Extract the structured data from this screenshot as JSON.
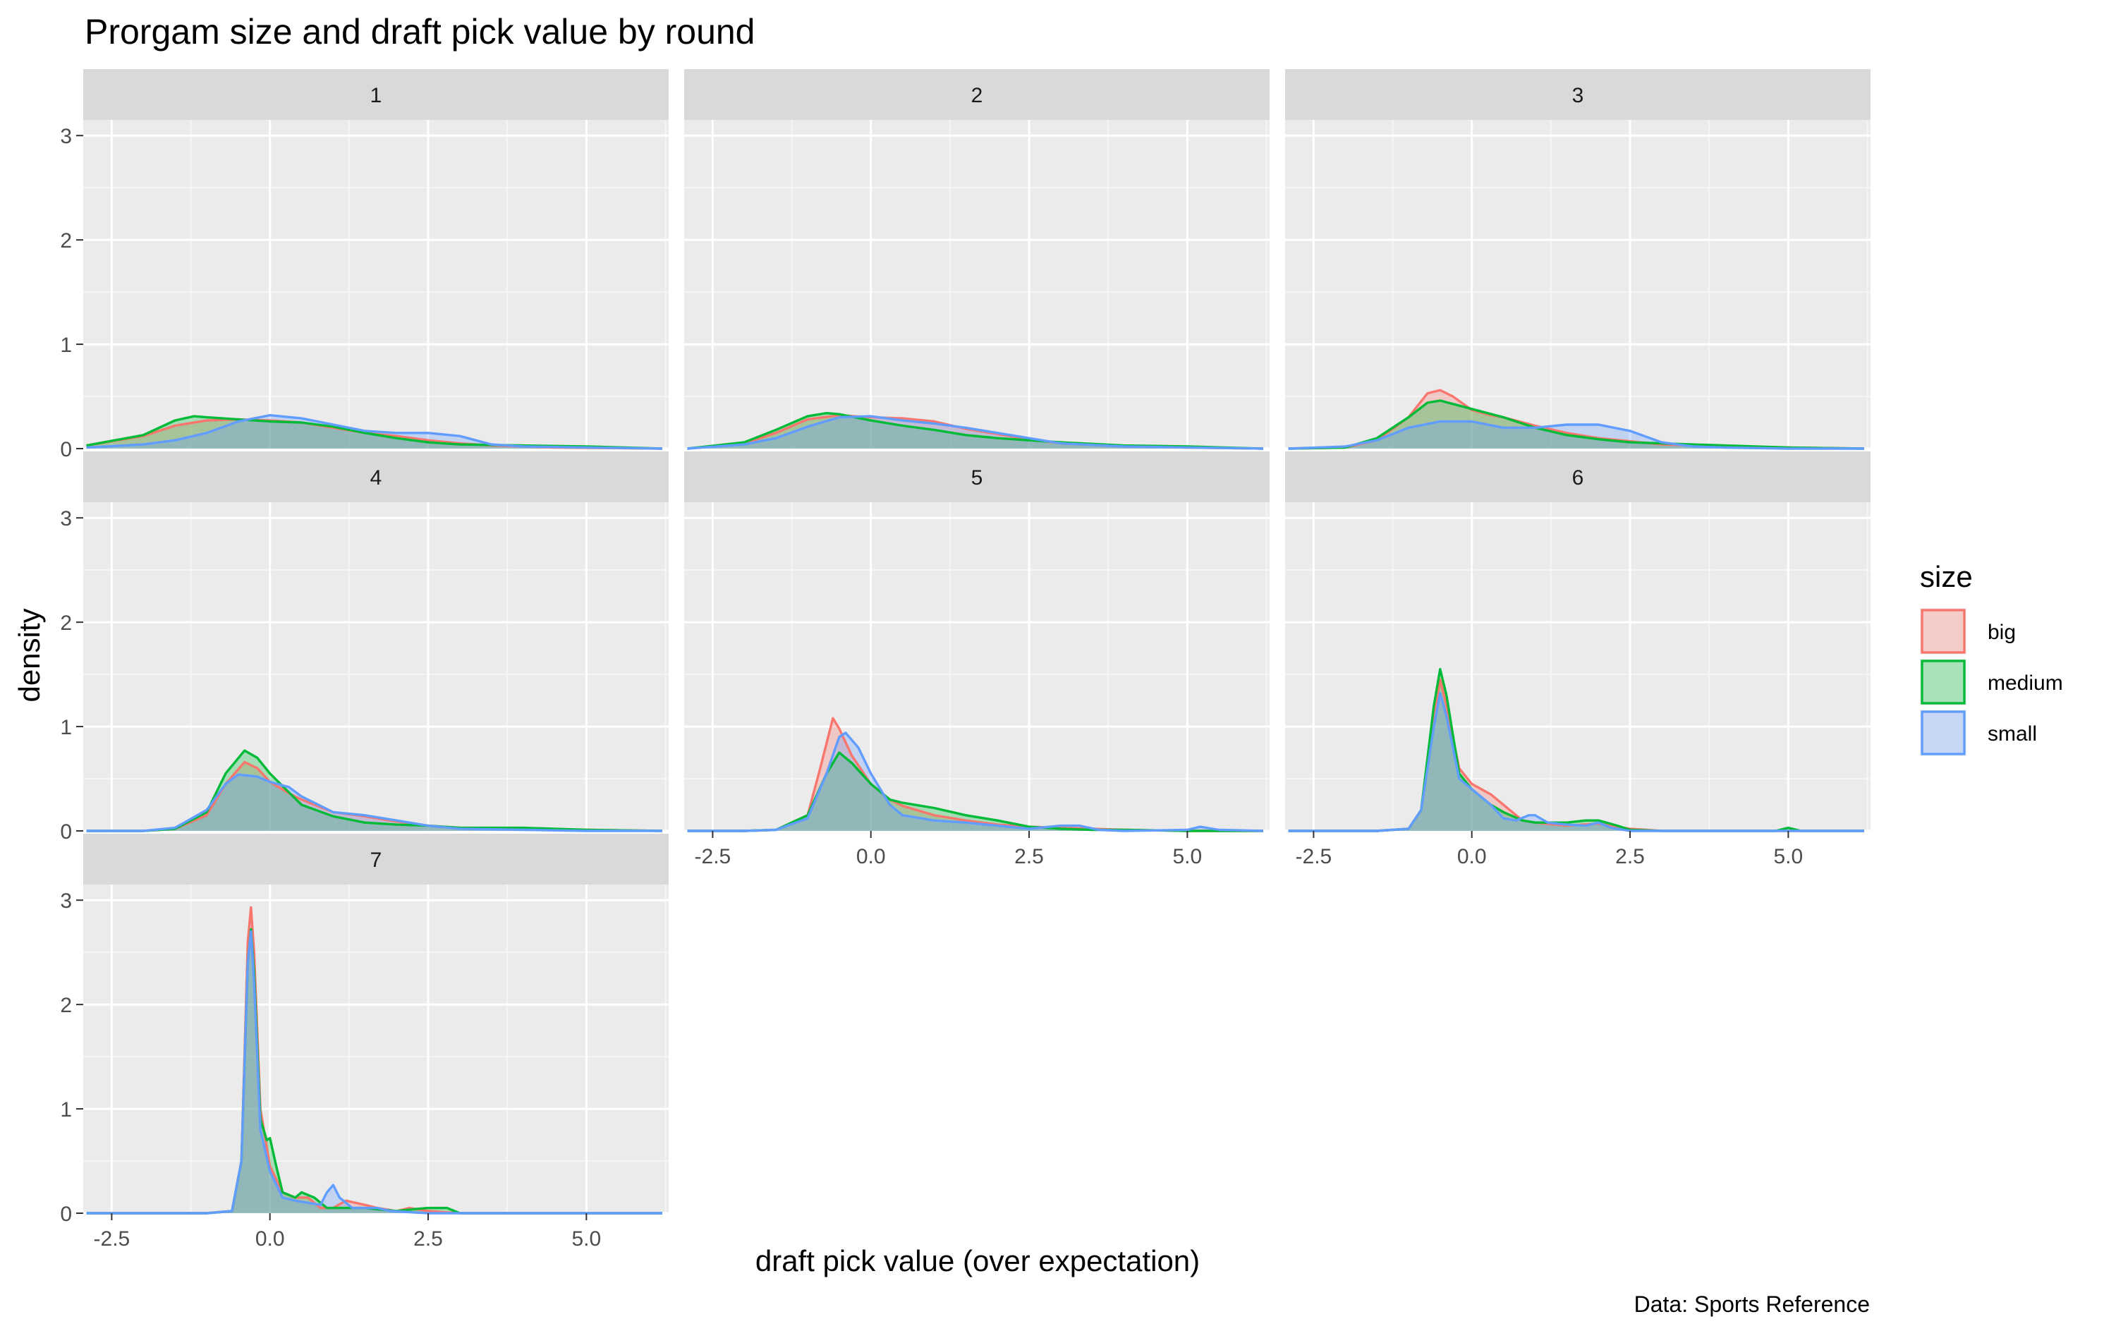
{
  "chart_data": {
    "type": "area",
    "title": "Prorgam size and draft pick value by round",
    "xlabel": "draft pick value (over expectation)",
    "ylabel": "density",
    "caption": "Data: Sports Reference",
    "xlim": [
      -2.95,
      6.3
    ],
    "ylim": [
      0,
      3
    ],
    "x_ticks": [
      -2.5,
      0.0,
      2.5,
      5.0
    ],
    "x_tick_labels": [
      "-2.5",
      "0.0",
      "2.5",
      "5.0"
    ],
    "y_ticks": [
      0,
      1,
      2,
      3
    ],
    "y_tick_labels": [
      "0",
      "1",
      "2",
      "3"
    ],
    "grid": true,
    "legend": {
      "title": "size",
      "position": "right",
      "entries": [
        {
          "label": "big",
          "color": "#F8766D"
        },
        {
          "label": "medium",
          "color": "#00BA38"
        },
        {
          "label": "small",
          "color": "#619CFF"
        }
      ]
    },
    "facets": [
      {
        "label": "1",
        "series": [
          {
            "name": "big",
            "x": [
              -2.9,
              -2.0,
              -1.5,
              -1.0,
              -0.5,
              0.0,
              0.5,
              1.0,
              1.5,
              2.0,
              2.5,
              3.0,
              3.5,
              4.5,
              6.2
            ],
            "y": [
              0.03,
              0.12,
              0.22,
              0.27,
              0.28,
              0.27,
              0.25,
              0.2,
              0.15,
              0.12,
              0.08,
              0.05,
              0.03,
              0.01,
              0.0
            ]
          },
          {
            "name": "medium",
            "x": [
              -2.9,
              -2.0,
              -1.5,
              -1.2,
              -1.0,
              -0.5,
              0.0,
              0.5,
              1.0,
              1.5,
              2.0,
              2.5,
              3.0,
              4.0,
              5.0,
              6.2
            ],
            "y": [
              0.03,
              0.13,
              0.27,
              0.31,
              0.3,
              0.28,
              0.26,
              0.25,
              0.21,
              0.15,
              0.1,
              0.06,
              0.04,
              0.03,
              0.02,
              0.0
            ]
          },
          {
            "name": "small",
            "x": [
              -2.9,
              -2.0,
              -1.5,
              -1.0,
              -0.5,
              0.0,
              0.5,
              1.0,
              1.5,
              2.0,
              2.5,
              3.0,
              3.5,
              4.0,
              5.0,
              6.2
            ],
            "y": [
              0.01,
              0.04,
              0.08,
              0.15,
              0.26,
              0.32,
              0.29,
              0.23,
              0.17,
              0.15,
              0.15,
              0.12,
              0.04,
              0.02,
              0.01,
              0.0
            ]
          }
        ]
      },
      {
        "label": "2",
        "series": [
          {
            "name": "big",
            "x": [
              -2.9,
              -2.0,
              -1.5,
              -1.0,
              -0.5,
              0.0,
              0.5,
              1.0,
              1.5,
              2.0,
              2.5,
              3.0,
              4.0,
              5.0,
              6.2
            ],
            "y": [
              0.0,
              0.05,
              0.15,
              0.28,
              0.32,
              0.3,
              0.29,
              0.26,
              0.19,
              0.14,
              0.09,
              0.05,
              0.02,
              0.01,
              0.0
            ]
          },
          {
            "name": "medium",
            "x": [
              -2.9,
              -2.0,
              -1.5,
              -1.0,
              -0.7,
              -0.5,
              0.0,
              0.5,
              1.0,
              1.5,
              2.0,
              2.5,
              3.0,
              4.0,
              5.0,
              6.2
            ],
            "y": [
              0.0,
              0.06,
              0.18,
              0.31,
              0.34,
              0.33,
              0.27,
              0.22,
              0.18,
              0.13,
              0.1,
              0.08,
              0.06,
              0.03,
              0.02,
              0.0
            ]
          },
          {
            "name": "small",
            "x": [
              -2.9,
              -2.0,
              -1.5,
              -1.0,
              -0.5,
              0.0,
              0.5,
              1.0,
              1.5,
              2.0,
              2.5,
              3.0,
              4.0,
              5.0,
              6.2
            ],
            "y": [
              0.0,
              0.04,
              0.1,
              0.21,
              0.3,
              0.31,
              0.27,
              0.24,
              0.2,
              0.15,
              0.1,
              0.05,
              0.02,
              0.01,
              0.0
            ]
          }
        ]
      },
      {
        "label": "3",
        "series": [
          {
            "name": "big",
            "x": [
              -2.9,
              -2.0,
              -1.5,
              -1.0,
              -0.7,
              -0.5,
              -0.3,
              0.0,
              0.3,
              0.5,
              1.0,
              1.5,
              2.0,
              2.5,
              3.0,
              4.0,
              5.0,
              6.2
            ],
            "y": [
              0.0,
              0.01,
              0.08,
              0.3,
              0.53,
              0.56,
              0.5,
              0.37,
              0.32,
              0.3,
              0.22,
              0.15,
              0.1,
              0.07,
              0.04,
              0.02,
              0.01,
              0.0
            ]
          },
          {
            "name": "medium",
            "x": [
              -2.9,
              -2.0,
              -1.5,
              -1.0,
              -0.7,
              -0.5,
              0.0,
              0.5,
              1.0,
              1.5,
              2.0,
              2.5,
              3.0,
              4.0,
              5.0,
              6.2
            ],
            "y": [
              0.0,
              0.01,
              0.1,
              0.3,
              0.44,
              0.46,
              0.38,
              0.3,
              0.2,
              0.13,
              0.09,
              0.06,
              0.05,
              0.03,
              0.01,
              0.0
            ]
          },
          {
            "name": "small",
            "x": [
              -2.9,
              -2.0,
              -1.5,
              -1.0,
              -0.5,
              0.0,
              0.5,
              1.0,
              1.5,
              2.0,
              2.5,
              3.0,
              3.5,
              4.0,
              5.0,
              6.2
            ],
            "y": [
              0.0,
              0.02,
              0.08,
              0.2,
              0.26,
              0.26,
              0.2,
              0.2,
              0.23,
              0.23,
              0.17,
              0.06,
              0.02,
              0.01,
              0.0,
              0.0
            ]
          }
        ]
      },
      {
        "label": "4",
        "series": [
          {
            "name": "big",
            "x": [
              -2.9,
              -2.0,
              -1.5,
              -1.0,
              -0.7,
              -0.4,
              -0.2,
              0.0,
              0.3,
              0.5,
              1.0,
              1.5,
              2.0,
              2.5,
              3.0,
              4.0,
              5.0,
              6.2
            ],
            "y": [
              0.0,
              0.0,
              0.02,
              0.15,
              0.45,
              0.66,
              0.6,
              0.47,
              0.36,
              0.3,
              0.18,
              0.14,
              0.09,
              0.05,
              0.03,
              0.02,
              0.01,
              0.0
            ]
          },
          {
            "name": "medium",
            "x": [
              -2.9,
              -2.0,
              -1.5,
              -1.0,
              -0.7,
              -0.4,
              -0.2,
              0.0,
              0.3,
              0.5,
              1.0,
              1.5,
              2.0,
              2.5,
              3.0,
              3.5,
              4.0,
              5.0,
              6.2
            ],
            "y": [
              0.0,
              0.0,
              0.02,
              0.18,
              0.55,
              0.77,
              0.7,
              0.55,
              0.37,
              0.25,
              0.14,
              0.08,
              0.06,
              0.05,
              0.03,
              0.03,
              0.03,
              0.01,
              0.0
            ]
          },
          {
            "name": "small",
            "x": [
              -2.9,
              -2.0,
              -1.5,
              -1.0,
              -0.7,
              -0.5,
              -0.2,
              0.0,
              0.3,
              0.5,
              1.0,
              1.5,
              2.0,
              2.5,
              3.0,
              4.0,
              5.0,
              6.2
            ],
            "y": [
              0.0,
              0.0,
              0.03,
              0.2,
              0.45,
              0.54,
              0.52,
              0.47,
              0.42,
              0.33,
              0.18,
              0.15,
              0.1,
              0.05,
              0.02,
              0.01,
              0.0,
              0.0
            ]
          }
        ]
      },
      {
        "label": "5",
        "series": [
          {
            "name": "big",
            "x": [
              -2.9,
              -2.0,
              -1.5,
              -1.0,
              -0.8,
              -0.6,
              -0.5,
              -0.3,
              0.0,
              0.3,
              0.5,
              1.0,
              1.5,
              2.0,
              2.5,
              3.0,
              3.5,
              4.0,
              5.0,
              6.2
            ],
            "y": [
              0.0,
              0.0,
              0.01,
              0.15,
              0.6,
              1.08,
              0.98,
              0.72,
              0.45,
              0.3,
              0.24,
              0.15,
              0.1,
              0.06,
              0.04,
              0.03,
              0.02,
              0.01,
              0.0,
              0.0
            ]
          },
          {
            "name": "medium",
            "x": [
              -2.9,
              -2.0,
              -1.5,
              -1.0,
              -0.7,
              -0.5,
              -0.3,
              0.0,
              0.3,
              0.5,
              1.0,
              1.5,
              2.0,
              2.5,
              3.0,
              3.5,
              4.0,
              5.0,
              6.2
            ],
            "y": [
              0.0,
              0.0,
              0.01,
              0.15,
              0.55,
              0.75,
              0.65,
              0.45,
              0.3,
              0.27,
              0.22,
              0.15,
              0.1,
              0.04,
              0.02,
              0.01,
              0.01,
              0.0,
              0.0
            ]
          },
          {
            "name": "small",
            "x": [
              -2.9,
              -2.0,
              -1.5,
              -1.0,
              -0.7,
              -0.5,
              -0.4,
              -0.2,
              0.0,
              0.3,
              0.5,
              1.0,
              1.5,
              2.0,
              2.5,
              3.0,
              3.3,
              3.6,
              4.0,
              5.0,
              5.2,
              5.5,
              6.2
            ],
            "y": [
              0.0,
              0.0,
              0.01,
              0.12,
              0.55,
              0.9,
              0.94,
              0.8,
              0.55,
              0.25,
              0.15,
              0.1,
              0.08,
              0.05,
              0.02,
              0.05,
              0.05,
              0.01,
              0.0,
              0.01,
              0.04,
              0.01,
              0.0
            ]
          }
        ]
      },
      {
        "label": "6",
        "series": [
          {
            "name": "big",
            "x": [
              -2.9,
              -1.5,
              -1.0,
              -0.8,
              -0.6,
              -0.5,
              -0.4,
              -0.2,
              0.0,
              0.3,
              0.5,
              0.8,
              1.0,
              1.5,
              2.0,
              2.5,
              3.0,
              4.0,
              5.0,
              6.2
            ],
            "y": [
              0.0,
              0.0,
              0.02,
              0.2,
              1.1,
              1.45,
              1.2,
              0.6,
              0.45,
              0.35,
              0.25,
              0.1,
              0.08,
              0.05,
              0.07,
              0.02,
              0.0,
              0.0,
              0.0,
              0.0
            ]
          },
          {
            "name": "medium",
            "x": [
              -2.9,
              -1.5,
              -1.0,
              -0.8,
              -0.6,
              -0.5,
              -0.4,
              -0.2,
              0.0,
              0.3,
              0.5,
              0.8,
              1.0,
              1.5,
              1.8,
              2.0,
              2.3,
              2.5,
              3.0,
              4.0,
              4.8,
              5.0,
              5.2,
              6.2
            ],
            "y": [
              0.0,
              0.0,
              0.02,
              0.2,
              1.2,
              1.55,
              1.3,
              0.55,
              0.4,
              0.25,
              0.18,
              0.1,
              0.08,
              0.08,
              0.1,
              0.1,
              0.05,
              0.01,
              0.0,
              0.0,
              0.0,
              0.03,
              0.0,
              0.0
            ]
          },
          {
            "name": "small",
            "x": [
              -2.9,
              -1.5,
              -1.0,
              -0.8,
              -0.6,
              -0.5,
              -0.4,
              -0.2,
              0.0,
              0.3,
              0.5,
              0.7,
              0.9,
              1.0,
              1.2,
              1.5,
              1.8,
              2.0,
              2.2,
              2.5,
              3.0,
              6.2
            ],
            "y": [
              0.0,
              0.0,
              0.02,
              0.2,
              1.0,
              1.32,
              1.1,
              0.5,
              0.4,
              0.25,
              0.12,
              0.1,
              0.15,
              0.15,
              0.08,
              0.06,
              0.05,
              0.08,
              0.03,
              0.0,
              0.0,
              0.0
            ]
          }
        ]
      },
      {
        "label": "7",
        "series": [
          {
            "name": "big",
            "x": [
              -2.9,
              -1.0,
              -0.6,
              -0.45,
              -0.35,
              -0.3,
              -0.25,
              -0.15,
              0.0,
              0.2,
              0.4,
              0.6,
              0.8,
              1.0,
              1.2,
              1.5,
              1.7,
              2.0,
              2.2,
              2.5,
              3.0,
              6.2
            ],
            "y": [
              0.0,
              0.0,
              0.02,
              0.5,
              2.6,
              2.93,
              2.5,
              1.0,
              0.45,
              0.2,
              0.15,
              0.15,
              0.05,
              0.05,
              0.12,
              0.08,
              0.05,
              0.02,
              0.05,
              0.02,
              0.0,
              0.0
            ]
          },
          {
            "name": "medium",
            "x": [
              -2.9,
              -1.0,
              -0.6,
              -0.45,
              -0.35,
              -0.3,
              -0.25,
              -0.15,
              -0.05,
              0.0,
              0.1,
              0.2,
              0.4,
              0.5,
              0.7,
              0.9,
              1.2,
              1.5,
              2.0,
              2.3,
              2.5,
              2.8,
              3.0,
              6.2
            ],
            "y": [
              0.0,
              0.0,
              0.02,
              0.5,
              2.4,
              2.72,
              2.3,
              0.9,
              0.7,
              0.72,
              0.45,
              0.2,
              0.15,
              0.2,
              0.15,
              0.05,
              0.05,
              0.05,
              0.02,
              0.04,
              0.05,
              0.05,
              0.0,
              0.0
            ]
          },
          {
            "name": "small",
            "x": [
              -2.9,
              -1.0,
              -0.6,
              -0.45,
              -0.35,
              -0.3,
              -0.25,
              -0.15,
              0.0,
              0.2,
              0.4,
              0.6,
              0.8,
              0.9,
              1.0,
              1.1,
              1.3,
              1.5,
              1.7,
              1.9,
              2.2,
              2.5,
              6.2
            ],
            "y": [
              0.0,
              0.0,
              0.02,
              0.5,
              2.4,
              2.7,
              2.2,
              0.8,
              0.4,
              0.15,
              0.12,
              0.1,
              0.08,
              0.2,
              0.27,
              0.15,
              0.05,
              0.05,
              0.05,
              0.02,
              0.01,
              0.0,
              0.0
            ]
          }
        ]
      }
    ]
  }
}
